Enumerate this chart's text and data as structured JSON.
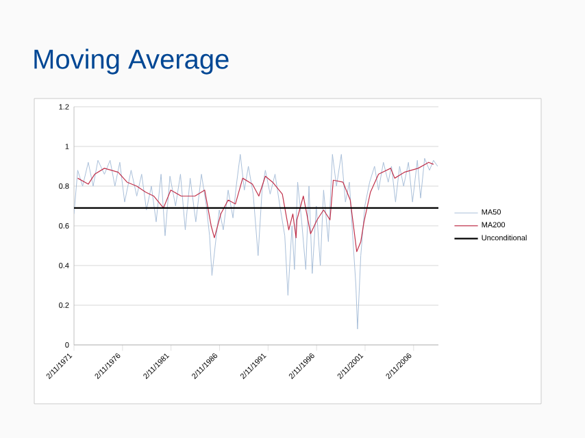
{
  "chart_data": {
    "type": "line",
    "title": "Moving Average",
    "xlim": [
      "1971-02-11",
      "2008-09-01"
    ],
    "ylim": [
      0,
      1.2
    ],
    "xticks": [
      {
        "value": "1971-02-11",
        "label": "2/11/1971"
      },
      {
        "value": "1976-02-11",
        "label": "2/11/1976"
      },
      {
        "value": "1981-02-11",
        "label": "2/11/1981"
      },
      {
        "value": "1986-02-11",
        "label": "2/11/1986"
      },
      {
        "value": "1991-02-11",
        "label": "2/11/1991"
      },
      {
        "value": "1996-02-11",
        "label": "2/11/1996"
      },
      {
        "value": "2001-02-11",
        "label": "2/11/2001"
      },
      {
        "value": "2006-02-11",
        "label": "2/11/2006"
      }
    ],
    "yticks": [
      0,
      0.2,
      0.4,
      0.6,
      0.8,
      1,
      1.2
    ],
    "grid": "y",
    "legend": "right",
    "series": [
      {
        "name": "MA50",
        "color": "#a9bfd9",
        "x": [
          "1971-02-11",
          "1971-07",
          "1972-01",
          "1972-08",
          "1973-02",
          "1973-08",
          "1974-04",
          "1974-11",
          "1975-05",
          "1975-11",
          "1976-05",
          "1977-01",
          "1977-08",
          "1978-02",
          "1978-08",
          "1979-02",
          "1979-08",
          "1980-02",
          "1980-07",
          "1981-01",
          "1981-08",
          "1982-02",
          "1982-08",
          "1983-02",
          "1983-09",
          "1984-04",
          "1984-10",
          "1985-02",
          "1985-05",
          "1985-09",
          "1986-02",
          "1986-07",
          "1987-01",
          "1987-07",
          "1987-11",
          "1988-04",
          "1988-09",
          "1989-02",
          "1989-08",
          "1990-02",
          "1990-07",
          "1990-11",
          "1991-05",
          "1991-11",
          "1992-05",
          "1992-11",
          "1993-03",
          "1993-08",
          "1993-11",
          "1994-03",
          "1994-08",
          "1995-01",
          "1995-05",
          "1995-09",
          "1996-02",
          "1996-07",
          "1996-11",
          "1997-05",
          "1997-10",
          "1998-03",
          "1998-09",
          "1999-02",
          "1999-07",
          "1999-11",
          "2000-03",
          "2000-05",
          "2000-09",
          "2001-02",
          "2001-08",
          "2002-02",
          "2002-07",
          "2003-01",
          "2003-07",
          "2003-11",
          "2004-04",
          "2004-09",
          "2005-02",
          "2005-08",
          "2006-01",
          "2006-07",
          "2006-11",
          "2007-04",
          "2007-10",
          "2008-03",
          "2008-08"
        ],
        "values": [
          0.66,
          0.88,
          0.8,
          0.92,
          0.8,
          0.93,
          0.86,
          0.93,
          0.8,
          0.92,
          0.72,
          0.88,
          0.75,
          0.86,
          0.68,
          0.8,
          0.62,
          0.86,
          0.55,
          0.85,
          0.7,
          0.86,
          0.58,
          0.84,
          0.62,
          0.86,
          0.7,
          0.55,
          0.35,
          0.5,
          0.68,
          0.58,
          0.78,
          0.64,
          0.8,
          0.96,
          0.78,
          0.9,
          0.76,
          0.45,
          0.78,
          0.88,
          0.76,
          0.86,
          0.7,
          0.55,
          0.25,
          0.6,
          0.38,
          0.82,
          0.62,
          0.38,
          0.8,
          0.36,
          0.7,
          0.4,
          0.78,
          0.52,
          0.96,
          0.8,
          0.96,
          0.72,
          0.82,
          0.55,
          0.3,
          0.08,
          0.45,
          0.7,
          0.82,
          0.9,
          0.78,
          0.92,
          0.82,
          0.9,
          0.72,
          0.9,
          0.8,
          0.92,
          0.72,
          0.93,
          0.74,
          0.94,
          0.88,
          0.93,
          0.9
        ]
      },
      {
        "name": "MA200",
        "color": "#c0304a",
        "x": [
          "1971-07",
          "1972-08",
          "1973-04",
          "1974-04",
          "1975-09",
          "1976-08",
          "1977-08",
          "1978-07",
          "1979-05",
          "1980-05",
          "1981-02",
          "1982-03",
          "1983-08",
          "1984-08",
          "1985-04",
          "1985-08",
          "1986-04",
          "1987-01",
          "1987-10",
          "1988-07",
          "1989-07",
          "1990-03",
          "1990-11",
          "1991-08",
          "1992-08",
          "1993-04",
          "1993-09",
          "1994-01",
          "1994-02",
          "1994-10",
          "1995-07",
          "1996-03",
          "1996-11",
          "1997-07",
          "1997-11",
          "1998-11",
          "1999-08",
          "2000-04",
          "2000-09",
          "2001-01",
          "2001-09",
          "2002-07",
          "2003-10",
          "2004-03",
          "2005-03",
          "2006-08",
          "2007-09",
          "2008-03"
        ],
        "values": [
          0.84,
          0.81,
          0.86,
          0.89,
          0.87,
          0.82,
          0.8,
          0.77,
          0.75,
          0.69,
          0.78,
          0.75,
          0.75,
          0.78,
          0.6,
          0.54,
          0.66,
          0.73,
          0.71,
          0.84,
          0.81,
          0.75,
          0.85,
          0.82,
          0.76,
          0.58,
          0.66,
          0.54,
          0.63,
          0.75,
          0.56,
          0.63,
          0.68,
          0.63,
          0.83,
          0.82,
          0.73,
          0.47,
          0.52,
          0.62,
          0.77,
          0.86,
          0.89,
          0.84,
          0.87,
          0.89,
          0.92,
          0.91
        ]
      },
      {
        "name": "Unconditional",
        "color": "#000000",
        "x": [
          "1971-02-11",
          "2008-09-01"
        ],
        "values": [
          0.69,
          0.69
        ]
      }
    ]
  }
}
